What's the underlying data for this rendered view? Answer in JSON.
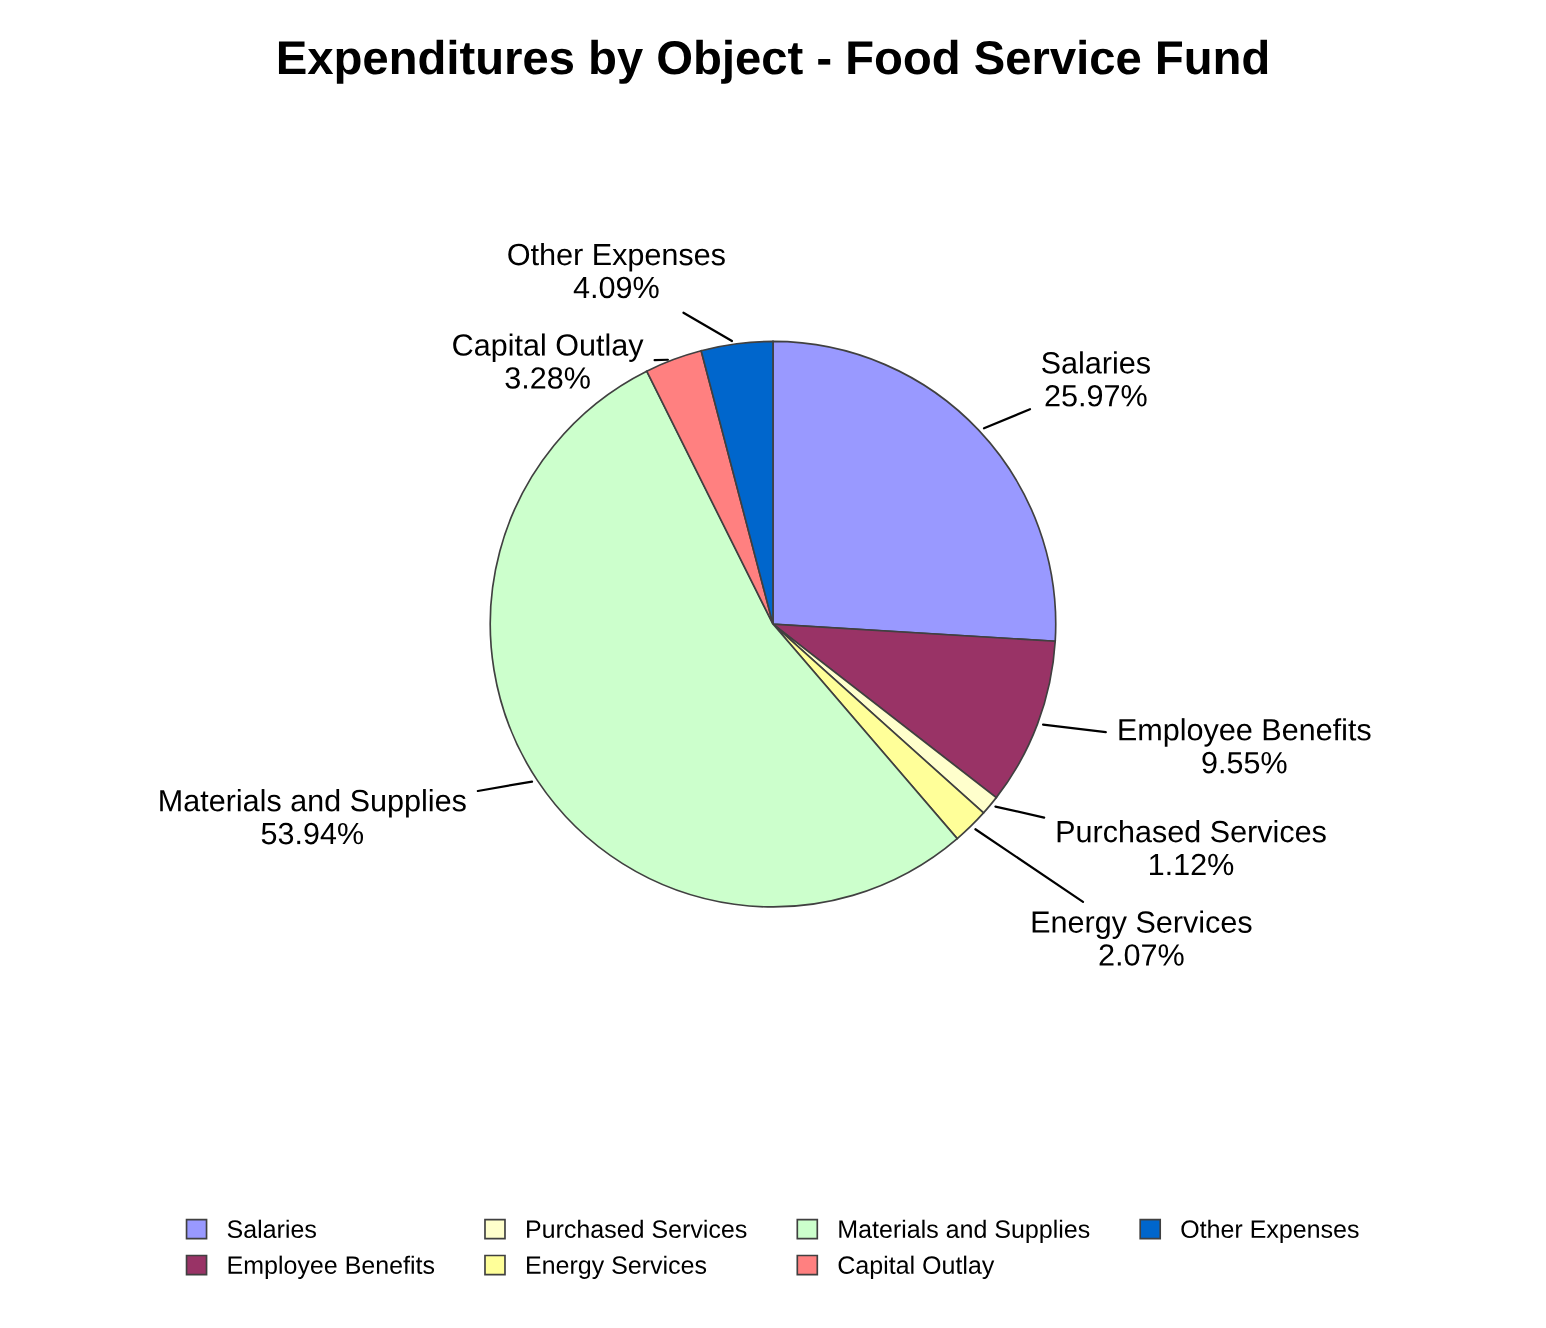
{
  "chart_data": {
    "type": "pie",
    "title": "Expenditures by Object - Food Service Fund",
    "categories": [
      "Salaries",
      "Employee Benefits",
      "Purchased Services",
      "Energy Services",
      "Materials and Supplies",
      "Capital Outlay",
      "Other Expenses"
    ],
    "values": [
      25.97,
      9.55,
      1.12,
      2.07,
      53.94,
      3.28,
      4.09
    ],
    "value_labels": [
      "25.97%",
      "9.55%",
      "1.12%",
      "2.07%",
      "53.94%",
      "3.28%",
      "4.09%"
    ],
    "colors": [
      "#9999ff",
      "#993366",
      "#ffffcc",
      "#ffff99",
      "#ccffcc",
      "#ff8080",
      "#0066cc"
    ],
    "legend": "bottom"
  }
}
